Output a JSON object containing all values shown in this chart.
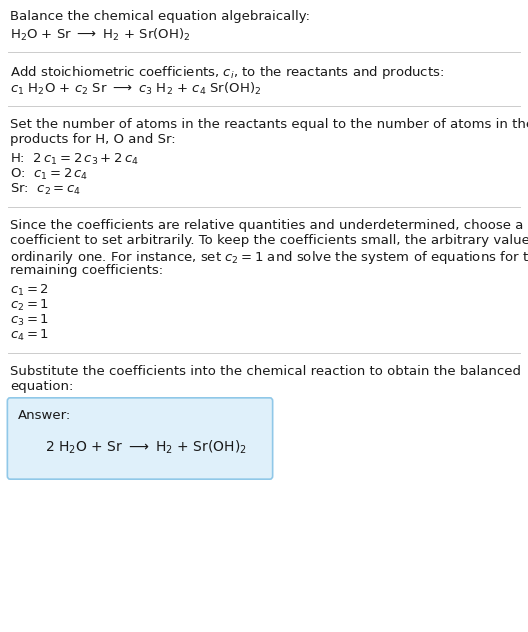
{
  "bg_color": "#ffffff",
  "text_color": "#1a1a1a",
  "line_color": "#cccccc",
  "answer_box_color": "#dff0fa",
  "answer_box_border": "#90c8e8",
  "figsize": [
    5.28,
    6.32
  ],
  "dpi": 100,
  "sections": {
    "s1_title": "Balance the chemical equation algebraically:",
    "s2_title": "Add stoichiometric coefficients, $c_i$, to the reactants and products:",
    "s3_title_l1": "Set the number of atoms in the reactants equal to the number of atoms in the",
    "s3_title_l2": "products for H, O and Sr:",
    "s4_title_l1": "Since the coefficients are relative quantities and underdetermined, choose a",
    "s4_title_l2": "coefficient to set arbitrarily. To keep the coefficients small, the arbitrary value is",
    "s4_title_l3": "ordinarily one. For instance, set $c_2 = 1$ and solve the system of equations for the",
    "s4_title_l4": "remaining coefficients:",
    "s5_title_l1": "Substitute the coefficients into the chemical reaction to obtain the balanced",
    "s5_title_l2": "equation:",
    "answer_label": "Answer:"
  }
}
